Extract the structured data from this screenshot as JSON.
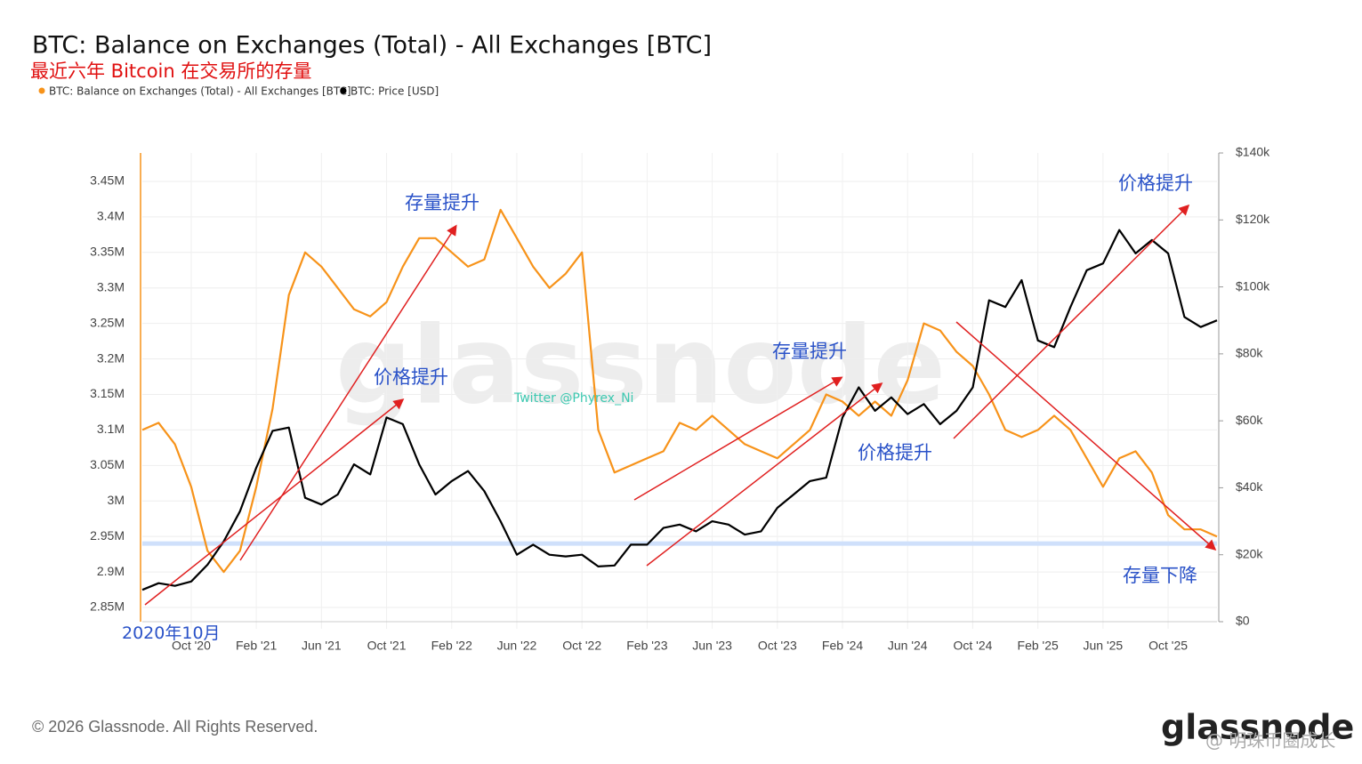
{
  "chart_data": {
    "type": "line",
    "title": "BTC: Balance on Exchanges (Total) - All Exchanges [BTC]",
    "subtitle": "最近六年 Bitcoin 在交易所的存量",
    "x": [
      "2020-07",
      "2020-08",
      "2020-09",
      "2020-10",
      "2020-11",
      "2020-12",
      "2021-01",
      "2021-02",
      "2021-03",
      "2021-04",
      "2021-05",
      "2021-06",
      "2021-07",
      "2021-08",
      "2021-09",
      "2021-10",
      "2021-11",
      "2021-12",
      "2022-01",
      "2022-02",
      "2022-03",
      "2022-04",
      "2022-05",
      "2022-06",
      "2022-07",
      "2022-08",
      "2022-09",
      "2022-10",
      "2022-11",
      "2022-12",
      "2023-01",
      "2023-02",
      "2023-03",
      "2023-04",
      "2023-05",
      "2023-06",
      "2023-07",
      "2023-08",
      "2023-09",
      "2023-10",
      "2023-11",
      "2023-12",
      "2024-01",
      "2024-02",
      "2024-03",
      "2024-04",
      "2024-05",
      "2024-06",
      "2024-07",
      "2024-08",
      "2024-09",
      "2024-10",
      "2024-11",
      "2024-12",
      "2025-01",
      "2025-02",
      "2025-03",
      "2025-04",
      "2025-05",
      "2025-06",
      "2025-07",
      "2025-08",
      "2025-09",
      "2025-10",
      "2025-11",
      "2025-12",
      "2026-01"
    ],
    "series": [
      {
        "name": "BTC: Balance on Exchanges (Total) - All Exchanges [BTC]",
        "color": "#f7931a",
        "values": [
          3100000,
          3110000,
          3080000,
          3020000,
          2930000,
          2900000,
          2930000,
          3020000,
          3130000,
          3290000,
          3350000,
          3330000,
          3300000,
          3270000,
          3260000,
          3280000,
          3330000,
          3370000,
          3370000,
          3350000,
          3330000,
          3340000,
          3410000,
          3370000,
          3330000,
          3300000,
          3320000,
          3350000,
          3100000,
          3040000,
          3050000,
          3060000,
          3070000,
          3110000,
          3100000,
          3120000,
          3100000,
          3080000,
          3070000,
          3060000,
          3080000,
          3100000,
          3150000,
          3140000,
          3120000,
          3140000,
          3120000,
          3170000,
          3250000,
          3240000,
          3210000,
          3190000,
          3150000,
          3100000,
          3090000,
          3100000,
          3120000,
          3100000,
          3060000,
          3020000,
          3060000,
          3070000,
          3040000,
          2980000,
          2960000,
          2960000,
          2950000
        ]
      },
      {
        "name": "BTC: Price [USD]",
        "color": "#000000",
        "axis": "y2",
        "values": [
          9500,
          11500,
          10700,
          12000,
          17000,
          24000,
          33000,
          46000,
          57000,
          58000,
          37000,
          35000,
          38000,
          47000,
          44000,
          61000,
          59000,
          47000,
          38000,
          42000,
          45000,
          39000,
          30000,
          20000,
          23000,
          20000,
          19500,
          20000,
          16500,
          16800,
          23000,
          23000,
          28000,
          29000,
          27000,
          30000,
          29000,
          26000,
          27000,
          34000,
          38000,
          42000,
          43000,
          61000,
          70000,
          63000,
          67000,
          62000,
          65000,
          59000,
          63000,
          70000,
          96000,
          94000,
          102000,
          84000,
          82000,
          94000,
          105000,
          107000,
          117000,
          110000,
          114000,
          110000,
          91000,
          88000,
          90000
        ]
      }
    ],
    "xlim": [
      "2020-07",
      "2026-01"
    ],
    "xticks": [
      {
        "value": "2020-10",
        "label": "Oct '20"
      },
      {
        "value": "2021-02",
        "label": "Feb '21"
      },
      {
        "value": "2021-06",
        "label": "Jun '21"
      },
      {
        "value": "2021-10",
        "label": "Oct '21"
      },
      {
        "value": "2022-02",
        "label": "Feb '22"
      },
      {
        "value": "2022-06",
        "label": "Jun '22"
      },
      {
        "value": "2022-10",
        "label": "Oct '22"
      },
      {
        "value": "2023-02",
        "label": "Feb '23"
      },
      {
        "value": "2023-06",
        "label": "Jun '23"
      },
      {
        "value": "2023-10",
        "label": "Oct '23"
      },
      {
        "value": "2024-02",
        "label": "Feb '24"
      },
      {
        "value": "2024-06",
        "label": "Jun '24"
      },
      {
        "value": "2024-10",
        "label": "Oct '24"
      },
      {
        "value": "2025-02",
        "label": "Feb '25"
      },
      {
        "value": "2025-06",
        "label": "Jun '25"
      },
      {
        "value": "2025-10",
        "label": "Oct '25"
      }
    ],
    "ylim": [
      2830000,
      3490000
    ],
    "yticks": [
      {
        "value": 2850000,
        "label": "2.85M"
      },
      {
        "value": 2900000,
        "label": "2.9M"
      },
      {
        "value": 2950000,
        "label": "2.95M"
      },
      {
        "value": 3000000,
        "label": "3M"
      },
      {
        "value": 3050000,
        "label": "3.05M"
      },
      {
        "value": 3100000,
        "label": "3.1M"
      },
      {
        "value": 3150000,
        "label": "3.15M"
      },
      {
        "value": 3200000,
        "label": "3.2M"
      },
      {
        "value": 3250000,
        "label": "3.25M"
      },
      {
        "value": 3300000,
        "label": "3.3M"
      },
      {
        "value": 3350000,
        "label": "3.35M"
      },
      {
        "value": 3400000,
        "label": "3.4M"
      },
      {
        "value": 3450000,
        "label": "3.45M"
      }
    ],
    "y2lim": [
      0,
      140000
    ],
    "y2ticks": [
      {
        "value": 0,
        "label": "$0"
      },
      {
        "value": 20000,
        "label": "$20k"
      },
      {
        "value": 40000,
        "label": "$40k"
      },
      {
        "value": 60000,
        "label": "$60k"
      },
      {
        "value": 80000,
        "label": "$80k"
      },
      {
        "value": 100000,
        "label": "$100k"
      },
      {
        "value": 120000,
        "label": "$120k"
      },
      {
        "value": 140000,
        "label": "$140k"
      }
    ],
    "reference_line": 2940000,
    "grid": true,
    "annotations": [
      "存量提升",
      "价格提升",
      "存量提升",
      "价格提升",
      "价格提升",
      "存量下降",
      "2020年10月",
      "Twitter @Phyrex_Ni"
    ],
    "watermark": "glassnode"
  },
  "footer": {
    "copyright": "© 2026 Glassnode. All Rights Reserved.",
    "logo": "glassnode",
    "source_watermark": "@ 明珠币圈成长"
  }
}
